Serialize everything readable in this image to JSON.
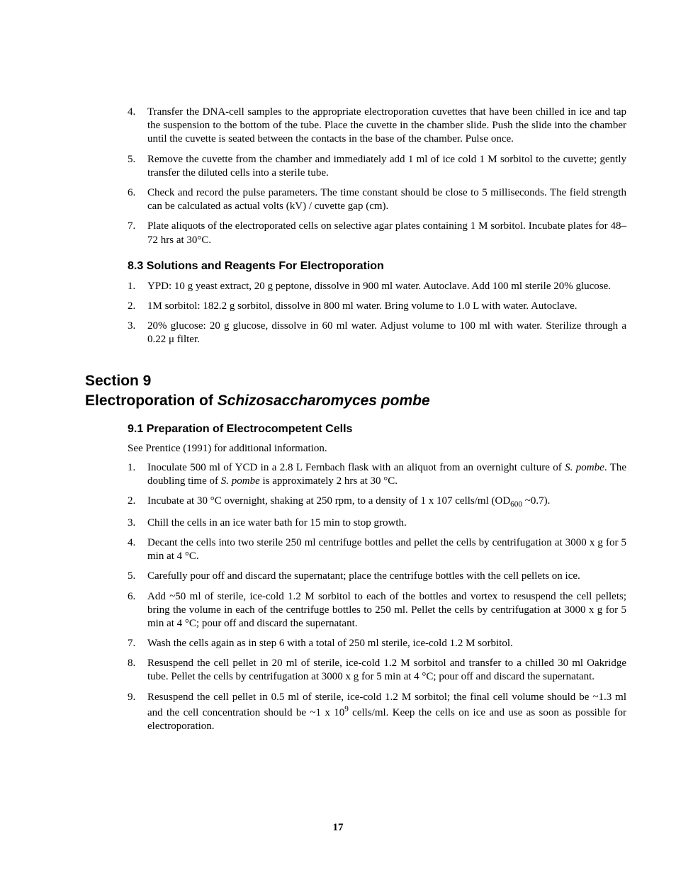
{
  "page_number": "17",
  "list_a": [
    {
      "num": 4,
      "text": "Transfer the DNA-cell samples to the appropriate electroporation cuvettes that have been chilled in ice and tap the suspension to the bottom of the tube. Place the cuvette in the chamber slide. Push the slide into the chamber until the cuvette is seated between the contacts in the base of the chamber.  Pulse once."
    },
    {
      "num": 5,
      "text": "Remove the cuvette from the chamber and immediately add 1 ml of ice cold 1 M sorbitol to the cuvette; gently transfer the diluted cells into a sterile tube."
    },
    {
      "num": 6,
      "text": "Check and record the pulse parameters. The time constant should be close to 5 milliseconds. The field strength can be calculated as actual volts (kV) / cuvette gap (cm)."
    },
    {
      "num": 7,
      "text": "Plate aliquots of the electroporated cells on selective agar plates containing 1 M sorbitol. Incubate plates for 48–72 hrs at 30°C."
    }
  ],
  "heading_83": "8.3  Solutions and Reagents For Electroporation",
  "list_b": [
    {
      "num": 1,
      "text": "YPD:  10 g yeast extract, 20 g peptone, dissolve in 900 ml water. Autoclave. Add 100 ml sterile 20% glucose."
    },
    {
      "num": 2,
      "text": "1M sorbitol:  182.2 g sorbitol, dissolve in 800 ml water. Bring volume to 1.0 L with water. Autoclave."
    },
    {
      "num": 3,
      "text": "20% glucose:  20 g glucose, dissolve in 60 ml water. Adjust volume to 100 ml with water. Sterilize through a 0.22 μ filter."
    }
  ],
  "section9_line1": "Section 9",
  "section9_line2a": "Electroporation of ",
  "section9_line2b": "Schizosaccharomyces pombe",
  "heading_91": "9.1  Preparation of Electrocompetent Cells",
  "intro_91": "See Prentice (1991) for additional information.",
  "list_c": [
    {
      "num": 1,
      "html": "Inoculate 500 ml of YCD in a 2.8 L Fernbach flask with an aliquot from an overnight culture of <span class='italic'>S. pombe</span>. The doubling time of <span class='italic'>S. pombe</span> is approximately 2 hrs at 30 °C."
    },
    {
      "num": 2,
      "html": "Incubate at 30 °C overnight, shaking at 250 rpm, to a density of 1 x 107 cells/ml (OD<span class='sub'>600</span> ~0.7)."
    },
    {
      "num": 3,
      "html": "Chill the cells in an ice water bath for 15 min to stop growth."
    },
    {
      "num": 4,
      "html": "Decant the cells into two sterile 250 ml centrifuge bottles and pellet the cells by centrifugation at 3000 x g for 5 min at 4 °C."
    },
    {
      "num": 5,
      "html": "Carefully pour off and discard the supernatant; place the centrifuge bottles with the cell pellets on ice."
    },
    {
      "num": 6,
      "html": "Add ~50 ml of sterile, ice-cold 1.2 M sorbitol to each of the bottles and vortex to resuspend the cell pellets; bring the volume in each of the centrifuge bottles to 250 ml. Pellet the cells by centrifugation at 3000 x g for 5 min at 4 °C; pour off and discard the supernatant."
    },
    {
      "num": 7,
      "html": "Wash the cells again as in step 6 with a total of 250 ml sterile, ice-cold 1.2 M sorbitol."
    },
    {
      "num": 8,
      "html": "Resuspend the cell pellet in 20 ml of sterile, ice-cold 1.2 M sorbitol and transfer to a chilled 30 ml Oakridge tube. Pellet the cells by centrifugation at 3000 x g for 5 min at 4 °C; pour off and discard the supernatant."
    },
    {
      "num": 9,
      "html": "Resuspend the cell pellet in 0.5 ml of sterile, ice-cold 1.2 M sorbitol; the final cell volume should be ~1.3 ml and the cell concentration should be ~1 x 10<span class='sup'>9</span> cells/ml. Keep the cells on ice and use as soon as possible for electroporation."
    }
  ]
}
